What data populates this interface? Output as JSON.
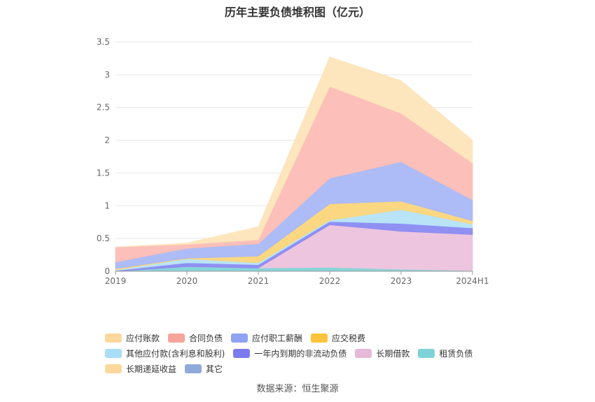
{
  "chart_data": {
    "type": "area",
    "stacked": true,
    "title": "历年主要负债堆积图（亿元）",
    "x": [
      "2019",
      "2020",
      "2021",
      "2022",
      "2023",
      "2024H1"
    ],
    "ylim": [
      0,
      3.5
    ],
    "yticks": [
      "0",
      "0.5",
      "1",
      "1.5",
      "2",
      "2.5",
      "3",
      "3.5"
    ],
    "grid": true,
    "legend_position": "bottom",
    "series": [
      {
        "name": "租赁负债",
        "color": "#7fd3d6",
        "values": [
          0,
          0.07,
          0.05,
          0.06,
          0.03,
          0.01
        ]
      },
      {
        "name": "长期借款",
        "color": "#ecc2dd",
        "values": [
          0,
          0,
          0,
          0.65,
          0.58,
          0.55
        ]
      },
      {
        "name": "一年内到期的非流动负债",
        "color": "#8a8af2",
        "values": [
          0.01,
          0.06,
          0.05,
          0.05,
          0.12,
          0.1
        ]
      },
      {
        "name": "其他应付款(含利息和股利)",
        "color": "#b5e3f8",
        "values": [
          0.01,
          0.06,
          0.03,
          0.02,
          0.21,
          0.06
        ]
      },
      {
        "name": "应交税费",
        "color": "#fbd57a",
        "values": [
          0.02,
          0.01,
          0.1,
          0.25,
          0.13,
          0.05
        ]
      },
      {
        "name": "应付职工薪酬",
        "color": "#a9b8f6",
        "values": [
          0.1,
          0.15,
          0.19,
          0.39,
          0.6,
          0.32
        ]
      },
      {
        "name": "合同负债",
        "color": "#fcbcb5",
        "values": [
          0.23,
          0.06,
          0.06,
          1.4,
          0.74,
          0.56
        ]
      },
      {
        "name": "应付账款",
        "color": "#fde4b9",
        "values": [
          0,
          0.02,
          0.2,
          0.45,
          0.5,
          0.35
        ]
      }
    ],
    "legend": [
      {
        "name": "应付账款",
        "color": "#fdd89c"
      },
      {
        "name": "合同负债",
        "color": "#f7a49b"
      },
      {
        "name": "应付职工薪酬",
        "color": "#8fa3f5"
      },
      {
        "name": "应交税费",
        "color": "#fcc43a"
      },
      {
        "name": "其他应付款(含利息和股利)",
        "color": "#a8def8"
      },
      {
        "name": "一年内到期的非流动负债",
        "color": "#7b7bef"
      },
      {
        "name": "长期借款",
        "color": "#e6b9d8"
      },
      {
        "name": "租赁负债",
        "color": "#7fd3d6"
      },
      {
        "name": "长期递延收益",
        "color": "#fdd89c"
      },
      {
        "name": "其它",
        "color": "#8faad9"
      }
    ]
  },
  "source_note": "数据来源：恒生聚源"
}
